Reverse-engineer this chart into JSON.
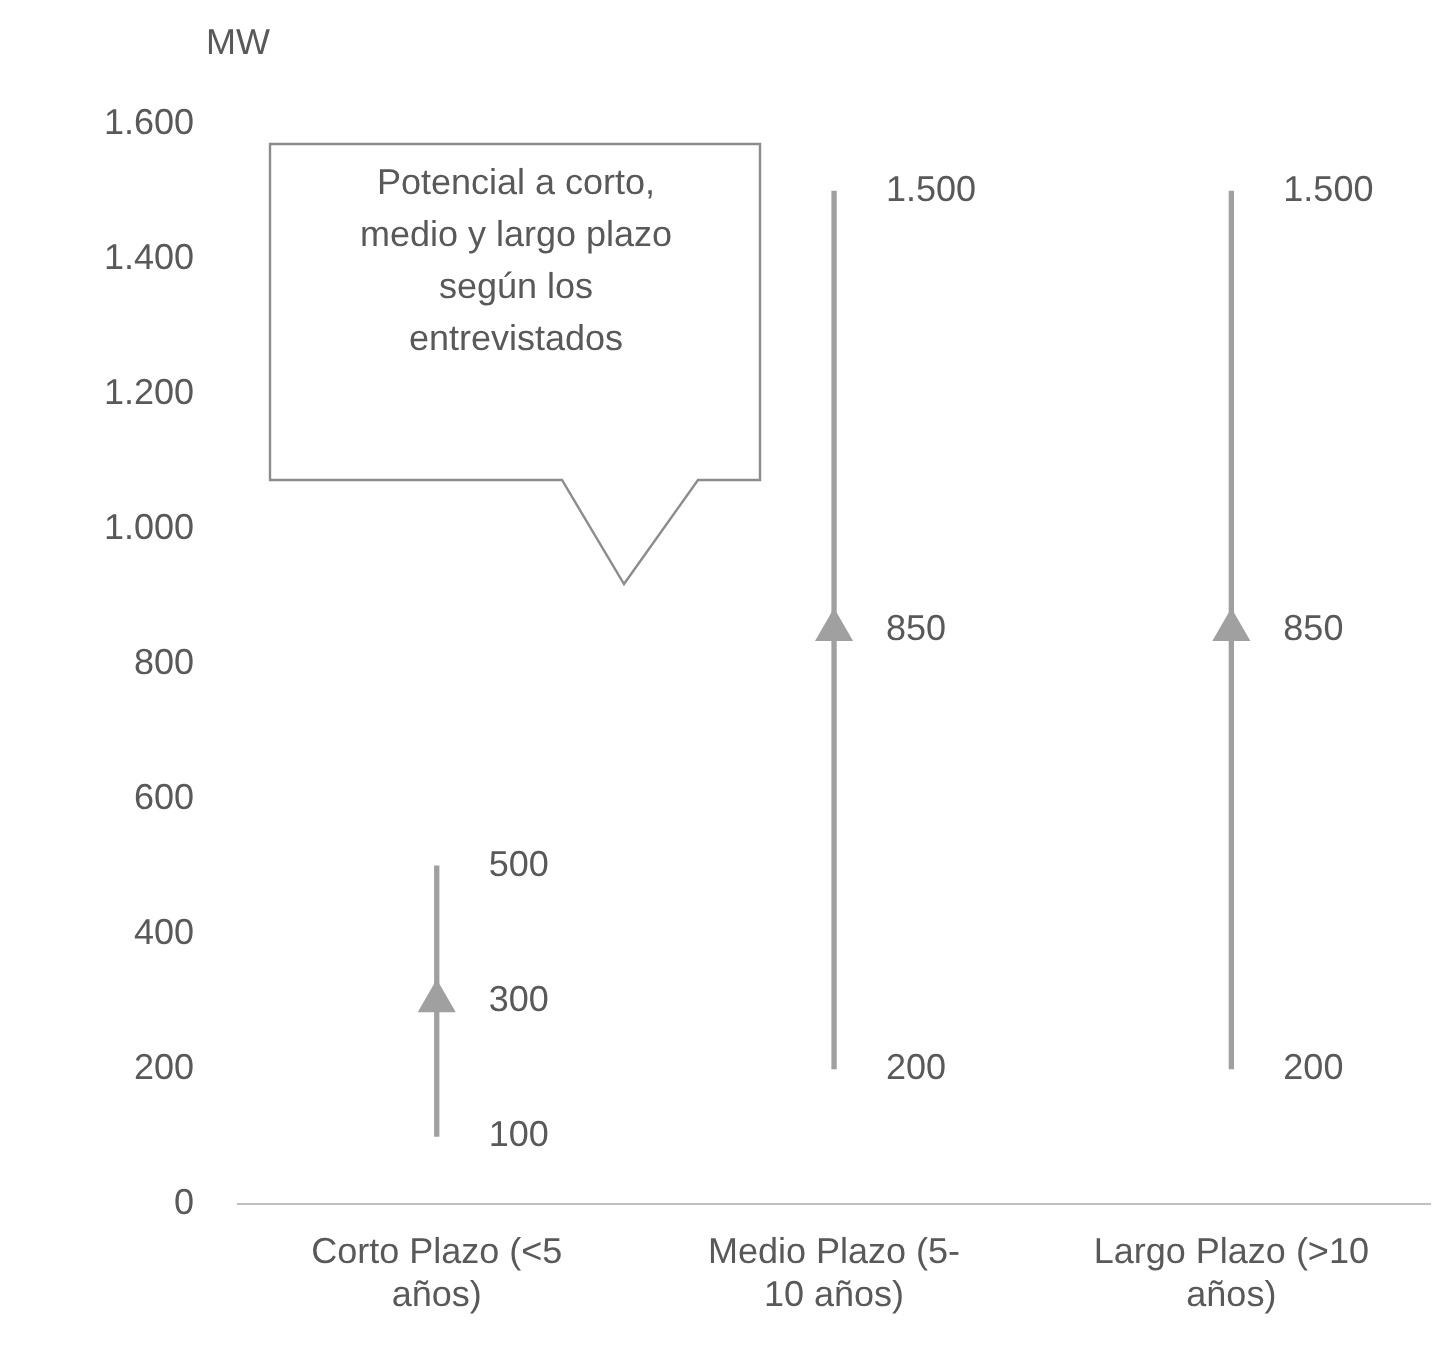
{
  "chart_data": {
    "type": "bar",
    "ylabel": "MW",
    "categories": [
      "Corto Plazo (<5 años)",
      "Medio Plazo (5-10 años)",
      "Largo Plazo (>10 años)"
    ],
    "series": [
      {
        "type": "bar",
        "color": "#a0a0a0",
        "values": [
          400,
          1300,
          1300
        ],
        "base": [
          100,
          200,
          200
        ]
      },
      {
        "type": "scatter",
        "color": "#a0a0a0",
        "marker": "triangle",
        "x": [
          "Corto Plazo (<5 años)",
          "Medio Plazo (5-10 años)",
          "Largo Plazo (>10 años)"
        ],
        "values": [
          300,
          850,
          850
        ],
        "value_labels": [
          "300",
          "850",
          "850"
        ]
      }
    ],
    "grid": false,
    "legend": false,
    "ylim": [
      0,
      1600
    ],
    "yticks": [
      {
        "value": 0,
        "label": "0"
      },
      {
        "value": 200,
        "label": "200"
      },
      {
        "value": 400,
        "label": "400"
      },
      {
        "value": 600,
        "label": "600"
      },
      {
        "value": 800,
        "label": "800"
      },
      {
        "value": 1000,
        "label": "1.000"
      },
      {
        "value": 1200,
        "label": "1.200"
      },
      {
        "value": 1400,
        "label": "1.400"
      },
      {
        "value": 1600,
        "label": "1.600"
      }
    ],
    "annotations": [
      "Potencial a corto, medio y largo plazo según los entrevistados",
      {
        "text": "500",
        "x": "Corto Plazo (<5 años)",
        "y": 500
      },
      {
        "text": "100",
        "x": "Corto Plazo (<5 años)",
        "y": 100
      },
      {
        "text": "1.500",
        "x": "Medio Plazo (5-10 años)",
        "y": 1500
      },
      {
        "text": "200",
        "x": "Medio Plazo (5-10 años)",
        "y": 200
      },
      {
        "text": "1.500",
        "x": "Largo Plazo (>10 años)",
        "y": 1500
      },
      {
        "text": "200",
        "x": "Largo Plazo (>10 años)",
        "y": 200
      }
    ]
  }
}
